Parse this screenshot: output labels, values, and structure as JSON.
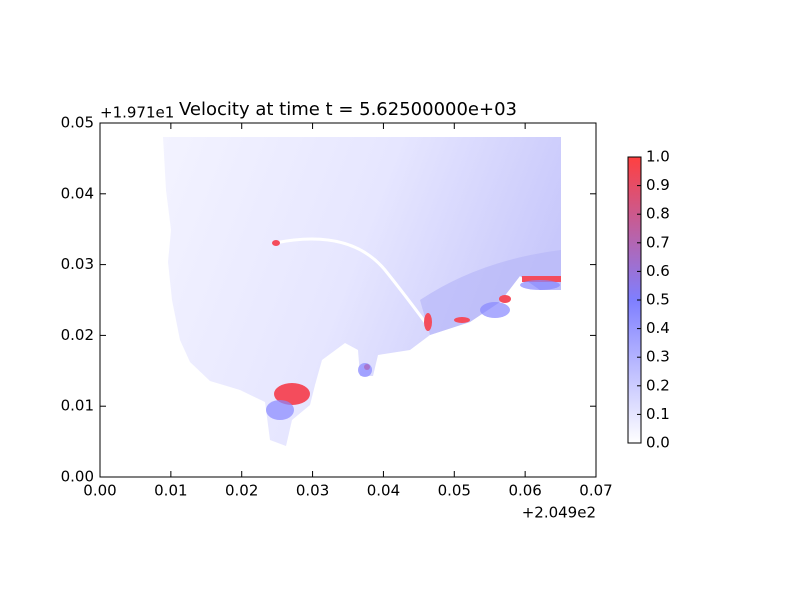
{
  "chart_data": {
    "type": "field",
    "title": "Velocity at time t = 5.62500000e+03",
    "xlim": [
      0,
      0.07
    ],
    "xticks": [
      {
        "value": 0,
        "label": "0.00"
      },
      0.01,
      0.02,
      0.03,
      0.04,
      0.05,
      0.06,
      0.07
    ],
    "x_offset_label": "+2.049e2",
    "ylim": [
      0,
      0.05
    ],
    "yticks": [
      {
        "value": 0,
        "label": "0.00"
      },
      0.01,
      0.02,
      0.03,
      0.04,
      0.05
    ],
    "y_offset_label": "+1.971e1",
    "colorbar": {
      "clim": [
        0,
        1
      ],
      "ticks": [
        {
          "value": 0,
          "label": "0.0"
        },
        0.1,
        0.2,
        0.3,
        0.4,
        0.5,
        0.6,
        0.7,
        0.8,
        0.9,
        {
          "value": 1,
          "label": "1.0"
        }
      ],
      "colormap": [
        "#ffffff",
        "#7f7fff",
        "#ff4040"
      ]
    }
  }
}
